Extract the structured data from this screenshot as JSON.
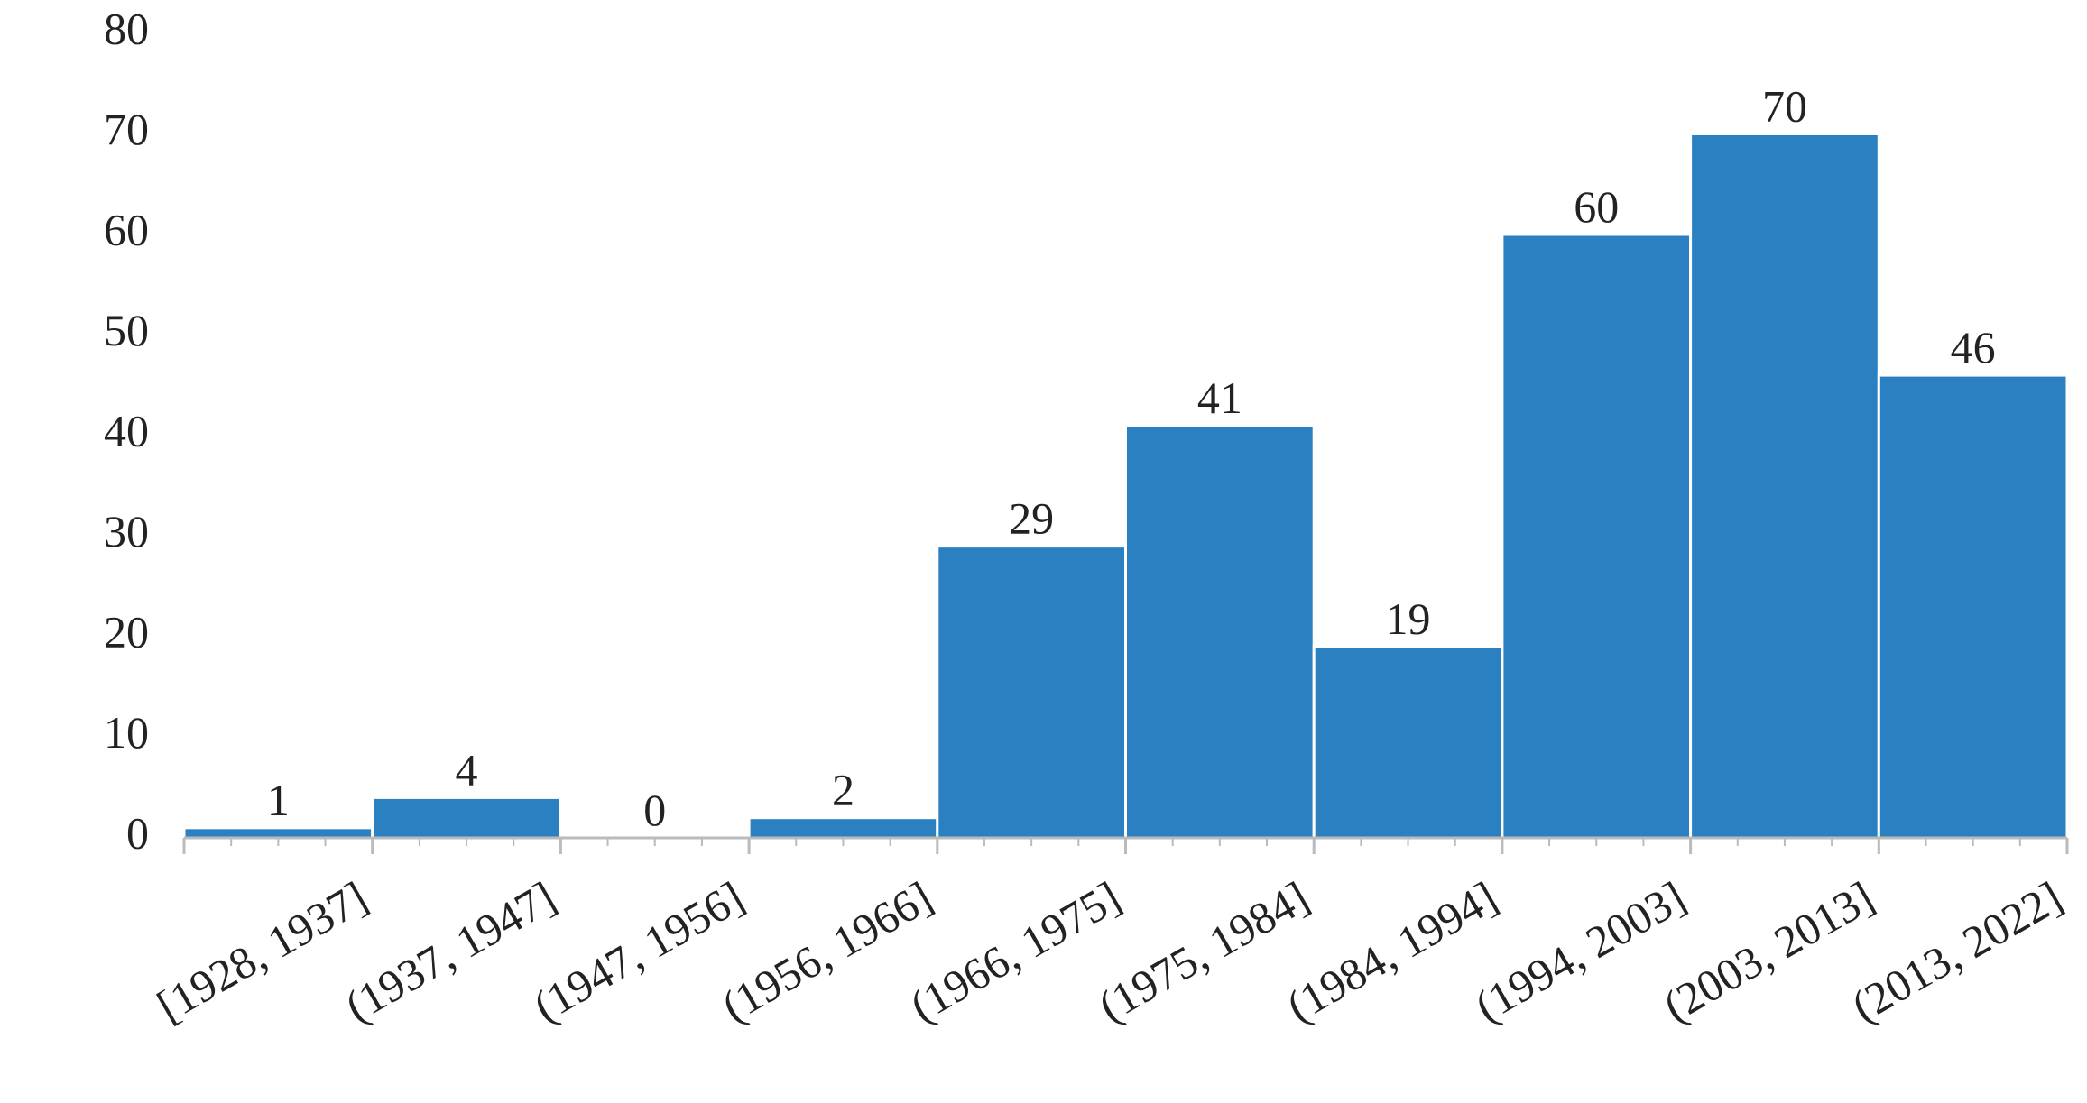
{
  "chart_data": {
    "type": "bar",
    "categories": [
      "[1928, 1937]",
      "(1937, 1947]",
      "(1947, 1956]",
      "(1956, 1966]",
      "(1966, 1975]",
      "(1975, 1984]",
      "(1984, 1994]",
      "(1994, 2003]",
      "(2003, 2013]",
      "(2013, 2022]"
    ],
    "values": [
      1,
      4,
      0,
      2,
      29,
      41,
      19,
      60,
      70,
      46
    ],
    "color": "#2a80c0",
    "ylim": [
      0,
      80
    ],
    "yticks": [
      0,
      10,
      20,
      30,
      40,
      50,
      60,
      70,
      80
    ],
    "grid": false
  }
}
